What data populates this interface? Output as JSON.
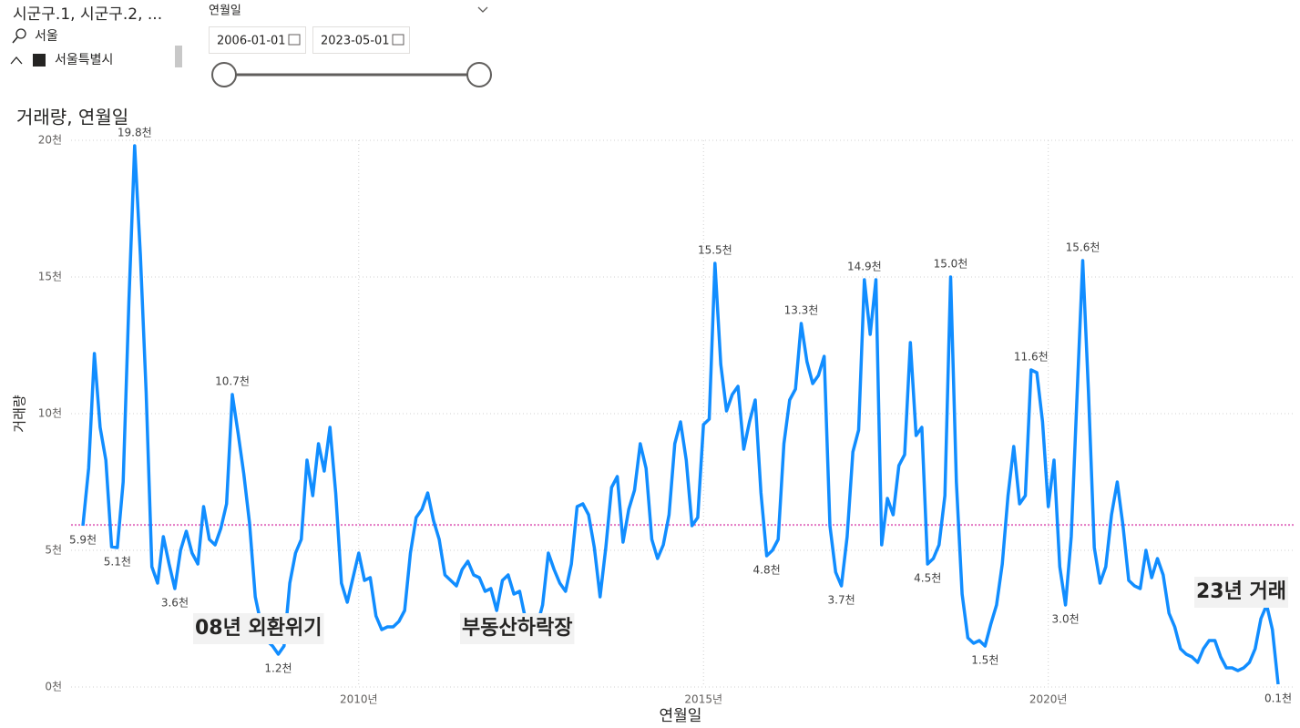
{
  "slicers": {
    "region": {
      "title": "시군구.1, 시군구.2, ...",
      "search": "서울",
      "item": "서울특별시"
    },
    "date": {
      "title": "연월일",
      "start": "2006-01-01",
      "end": "2023-05-01"
    }
  },
  "chart_data": {
    "type": "line",
    "title": "거래량, 연월일",
    "x_label": "연월일",
    "y_label": "거래량",
    "x": [
      "2006-01",
      "2006-02",
      "2006-03",
      "2006-04",
      "2006-05",
      "2006-06",
      "2006-07",
      "2006-08",
      "2006-09",
      "2006-10",
      "2006-11",
      "2006-12",
      "2007-01",
      "2007-02",
      "2007-03",
      "2007-04",
      "2007-05",
      "2007-06",
      "2007-07",
      "2007-08",
      "2007-09",
      "2007-10",
      "2007-11",
      "2007-12",
      "2008-01",
      "2008-02",
      "2008-03",
      "2008-04",
      "2008-05",
      "2008-06",
      "2008-07",
      "2008-08",
      "2008-09",
      "2008-10",
      "2008-11",
      "2008-12",
      "2009-01",
      "2009-02",
      "2009-03",
      "2009-04",
      "2009-05",
      "2009-06",
      "2009-07",
      "2009-08",
      "2009-09",
      "2009-10",
      "2009-11",
      "2009-12",
      "2010-01",
      "2010-02",
      "2010-03",
      "2010-04",
      "2010-05",
      "2010-06",
      "2010-07",
      "2010-08",
      "2010-09",
      "2010-10",
      "2010-11",
      "2010-12",
      "2011-01",
      "2011-02",
      "2011-03",
      "2011-04",
      "2011-05",
      "2011-06",
      "2011-07",
      "2011-08",
      "2011-09",
      "2011-10",
      "2011-11",
      "2011-12",
      "2012-01",
      "2012-02",
      "2012-03",
      "2012-04",
      "2012-05",
      "2012-06",
      "2012-07",
      "2012-08",
      "2012-09",
      "2012-10",
      "2012-11",
      "2012-12",
      "2013-01",
      "2013-02",
      "2013-03",
      "2013-04",
      "2013-05",
      "2013-06",
      "2013-07",
      "2013-08",
      "2013-09",
      "2013-10",
      "2013-11",
      "2013-12",
      "2014-01",
      "2014-02",
      "2014-03",
      "2014-04",
      "2014-05",
      "2014-06",
      "2014-07",
      "2014-08",
      "2014-09",
      "2014-10",
      "2014-11",
      "2014-12",
      "2015-01",
      "2015-02",
      "2015-03",
      "2015-04",
      "2015-05",
      "2015-06",
      "2015-07",
      "2015-08",
      "2015-09",
      "2015-10",
      "2015-11",
      "2015-12",
      "2016-01",
      "2016-02",
      "2016-03",
      "2016-04",
      "2016-05",
      "2016-06",
      "2016-07",
      "2016-08",
      "2016-09",
      "2016-10",
      "2016-11",
      "2016-12",
      "2017-01",
      "2017-02",
      "2017-03",
      "2017-04",
      "2017-05",
      "2017-06",
      "2017-07",
      "2017-08",
      "2017-09",
      "2017-10",
      "2017-11",
      "2017-12",
      "2018-01",
      "2018-02",
      "2018-03",
      "2018-04",
      "2018-05",
      "2018-06",
      "2018-07",
      "2018-08",
      "2018-09",
      "2018-10",
      "2018-11",
      "2018-12",
      "2019-01",
      "2019-02",
      "2019-03",
      "2019-04",
      "2019-05",
      "2019-06",
      "2019-07",
      "2019-08",
      "2019-09",
      "2019-10",
      "2019-11",
      "2019-12",
      "2020-01",
      "2020-02",
      "2020-03",
      "2020-04",
      "2020-05",
      "2020-06",
      "2020-07",
      "2020-08",
      "2020-09",
      "2020-10",
      "2020-11",
      "2020-12",
      "2021-01",
      "2021-02",
      "2021-03",
      "2021-04",
      "2021-05",
      "2021-06",
      "2021-07",
      "2021-08",
      "2021-09",
      "2021-10",
      "2021-11",
      "2021-12",
      "2022-01",
      "2022-02",
      "2022-03",
      "2022-04",
      "2022-05",
      "2022-06",
      "2022-07",
      "2022-08",
      "2022-09",
      "2022-10",
      "2022-11",
      "2022-12",
      "2023-01",
      "2023-02",
      "2023-03",
      "2023-04",
      "2023-05"
    ],
    "series": [
      {
        "name": "거래량",
        "color": "#118dff",
        "values": [
          5900,
          8000,
          12200,
          9500,
          8300,
          5130,
          5100,
          7500,
          14100,
          19800,
          15800,
          10800,
          4400,
          3800,
          5500,
          4500,
          3600,
          5000,
          5700,
          4900,
          4500,
          6600,
          5400,
          5200,
          5800,
          6700,
          10700,
          9300,
          7800,
          6000,
          3300,
          2300,
          1700,
          1500,
          1200,
          1500,
          3800,
          4900,
          5400,
          8300,
          7000,
          8900,
          7900,
          9500,
          7100,
          3800,
          3100,
          4000,
          4900,
          3900,
          4000,
          2600,
          2100,
          2200,
          2200,
          2400,
          2800,
          4900,
          6200,
          6500,
          7100,
          6100,
          5400,
          4100,
          3900,
          3700,
          4300,
          4600,
          4100,
          4000,
          3500,
          3600,
          2800,
          3900,
          4100,
          3400,
          3500,
          2500,
          2100,
          2200,
          3000,
          4900,
          4300,
          3800,
          3500,
          4500,
          6600,
          6700,
          6300,
          5100,
          3300,
          5100,
          7300,
          7700,
          5300,
          6500,
          7200,
          8900,
          8000,
          5400,
          4700,
          5200,
          6300,
          8900,
          9700,
          8300,
          5900,
          6200,
          9600,
          9800,
          15500,
          11800,
          10100,
          10700,
          11000,
          8700,
          9700,
          10500,
          7100,
          4800,
          5000,
          5400,
          8900,
          10500,
          10900,
          13300,
          11900,
          11100,
          11400,
          12100,
          5900,
          4200,
          3700,
          5500,
          8600,
          9400,
          14900,
          12900,
          14900,
          5200,
          6900,
          6300,
          8100,
          8500,
          12600,
          9200,
          9500,
          4500,
          4700,
          5200,
          7000,
          15000,
          7500,
          3400,
          1800,
          1600,
          1700,
          1500,
          2300,
          3000,
          4500,
          7000,
          8800,
          6700,
          7000,
          11600,
          11500,
          9700,
          6600,
          8300,
          4400,
          3000,
          5500,
          10600,
          15600,
          10800,
          5100,
          3800,
          4400,
          6300,
          7500,
          5900,
          3900,
          3700,
          3600,
          5000,
          4000,
          4700,
          4100,
          2700,
          2200,
          1400,
          1200,
          1100,
          900,
          1400,
          1700,
          1700,
          1100,
          700,
          700,
          600,
          700,
          900,
          1400,
          2500,
          3000,
          2100,
          100
        ],
        "value_labels": [
          "5.9천",
          null,
          null,
          null,
          null,
          null,
          "5.1천",
          null,
          null,
          "19.8천",
          null,
          null,
          null,
          null,
          null,
          null,
          "3.6천",
          null,
          null,
          null,
          null,
          null,
          null,
          null,
          null,
          null,
          "10.7천",
          null,
          null,
          null,
          null,
          null,
          null,
          null,
          "1.2천",
          null,
          null,
          null,
          null,
          null,
          null,
          null,
          null,
          null,
          null,
          null,
          null,
          null,
          null,
          null,
          null,
          null,
          null,
          null,
          null,
          null,
          null,
          null,
          null,
          null,
          null,
          null,
          null,
          null,
          null,
          null,
          null,
          null,
          null,
          null,
          null,
          null,
          null,
          null,
          null,
          null,
          null,
          null,
          null,
          null,
          null,
          null,
          null,
          null,
          null,
          null,
          null,
          null,
          null,
          null,
          null,
          null,
          null,
          null,
          null,
          null,
          null,
          null,
          null,
          null,
          null,
          null,
          null,
          null,
          null,
          null,
          null,
          null,
          null,
          null,
          "15.5천",
          null,
          null,
          null,
          null,
          null,
          null,
          null,
          null,
          "4.8천",
          null,
          null,
          null,
          null,
          null,
          "13.3천",
          null,
          null,
          null,
          null,
          null,
          null,
          "3.7천",
          null,
          null,
          null,
          "14.9천",
          null,
          null,
          null,
          null,
          null,
          null,
          null,
          null,
          null,
          null,
          "4.5천",
          null,
          null,
          null,
          "15.0천",
          null,
          null,
          null,
          null,
          null,
          "1.5천",
          null,
          null,
          null,
          null,
          null,
          null,
          null,
          "11.6천",
          null,
          null,
          null,
          null,
          null,
          "3.0천",
          null,
          null,
          "15.6천",
          null,
          null,
          null,
          null,
          null,
          null,
          null,
          null,
          null,
          null,
          null,
          null,
          null,
          null,
          null,
          null,
          null,
          null,
          null,
          null,
          null,
          null,
          null,
          null,
          null,
          null,
          null,
          null,
          null,
          null,
          null,
          null,
          null,
          "0.1천"
        ]
      }
    ],
    "xlim": [
      "2006-01",
      "2023-05"
    ],
    "xticks": [
      {
        "value": "2010-01",
        "label": "2010년"
      },
      {
        "value": "2015-01",
        "label": "2015년"
      },
      {
        "value": "2020-01",
        "label": "2020년"
      }
    ],
    "ylim": [
      0,
      20000
    ],
    "yticks": [
      {
        "value": 0,
        "label": "0천"
      },
      {
        "value": 5000,
        "label": "5천"
      },
      {
        "value": 10000,
        "label": "10천"
      },
      {
        "value": 15000,
        "label": "15천"
      },
      {
        "value": 20000,
        "label": "20천"
      }
    ],
    "grid": true,
    "reference_line": {
      "value": 5930,
      "color": "#e377c2"
    },
    "annotations": [
      "08년 외환위기",
      "부동산하락장",
      "23년 거래"
    ]
  }
}
